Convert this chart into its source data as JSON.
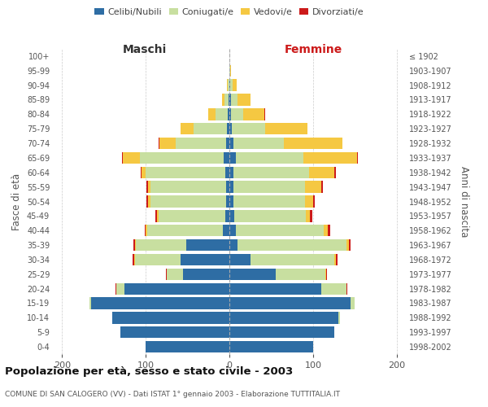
{
  "age_groups": [
    "0-4",
    "5-9",
    "10-14",
    "15-19",
    "20-24",
    "25-29",
    "30-34",
    "35-39",
    "40-44",
    "45-49",
    "50-54",
    "55-59",
    "60-64",
    "65-69",
    "70-74",
    "75-79",
    "80-84",
    "85-89",
    "90-94",
    "95-99",
    "100+"
  ],
  "birth_years": [
    "1998-2002",
    "1993-1997",
    "1988-1992",
    "1983-1987",
    "1978-1982",
    "1973-1977",
    "1968-1972",
    "1963-1967",
    "1958-1962",
    "1953-1957",
    "1948-1952",
    "1943-1947",
    "1938-1942",
    "1933-1937",
    "1928-1932",
    "1923-1927",
    "1918-1922",
    "1913-1917",
    "1908-1912",
    "1903-1907",
    "≤ 1902"
  ],
  "male": {
    "celibe": [
      100,
      130,
      140,
      165,
      125,
      55,
      58,
      52,
      8,
      5,
      4,
      4,
      5,
      7,
      4,
      3,
      2,
      1,
      0,
      0,
      0
    ],
    "coniugato": [
      0,
      0,
      0,
      2,
      10,
      20,
      55,
      60,
      90,
      80,
      90,
      90,
      95,
      100,
      60,
      40,
      15,
      5,
      2,
      0,
      0
    ],
    "vedovo": [
      0,
      0,
      0,
      0,
      0,
      0,
      1,
      1,
      2,
      2,
      3,
      3,
      5,
      20,
      20,
      15,
      8,
      3,
      1,
      0,
      0
    ],
    "divorziato": [
      0,
      0,
      0,
      0,
      1,
      1,
      2,
      2,
      1,
      1,
      2,
      2,
      1,
      1,
      1,
      0,
      0,
      0,
      0,
      0,
      0
    ]
  },
  "female": {
    "nubile": [
      100,
      125,
      130,
      145,
      110,
      55,
      25,
      10,
      8,
      6,
      5,
      5,
      5,
      8,
      5,
      3,
      2,
      2,
      1,
      0,
      0
    ],
    "coniugata": [
      0,
      0,
      2,
      5,
      30,
      60,
      100,
      130,
      105,
      85,
      85,
      85,
      90,
      80,
      60,
      40,
      15,
      8,
      3,
      1,
      0
    ],
    "vedova": [
      0,
      0,
      0,
      0,
      0,
      1,
      2,
      3,
      5,
      5,
      10,
      20,
      30,
      65,
      70,
      50,
      25,
      15,
      5,
      1,
      0
    ],
    "divorziata": [
      0,
      0,
      0,
      0,
      1,
      1,
      2,
      2,
      3,
      3,
      2,
      2,
      2,
      1,
      0,
      0,
      1,
      0,
      0,
      0,
      0
    ]
  },
  "colors": {
    "celibe": "#2e6da4",
    "coniugato": "#c8dfa0",
    "vedovo": "#f5c842",
    "divorziato": "#cc1a1a"
  },
  "xlim": 210,
  "title": "Popolazione per età, sesso e stato civile - 2003",
  "subtitle": "COMUNE DI SAN CALOGERO (VV) - Dati ISTAT 1° gennaio 2003 - Elaborazione TUTTITALIA.IT",
  "ylabel_left": "Fasce di età",
  "ylabel_right": "Anni di nascita",
  "xlabel_left": "Maschi",
  "xlabel_right": "Femmine",
  "bg_color": "#ffffff",
  "grid_color": "#cccccc"
}
